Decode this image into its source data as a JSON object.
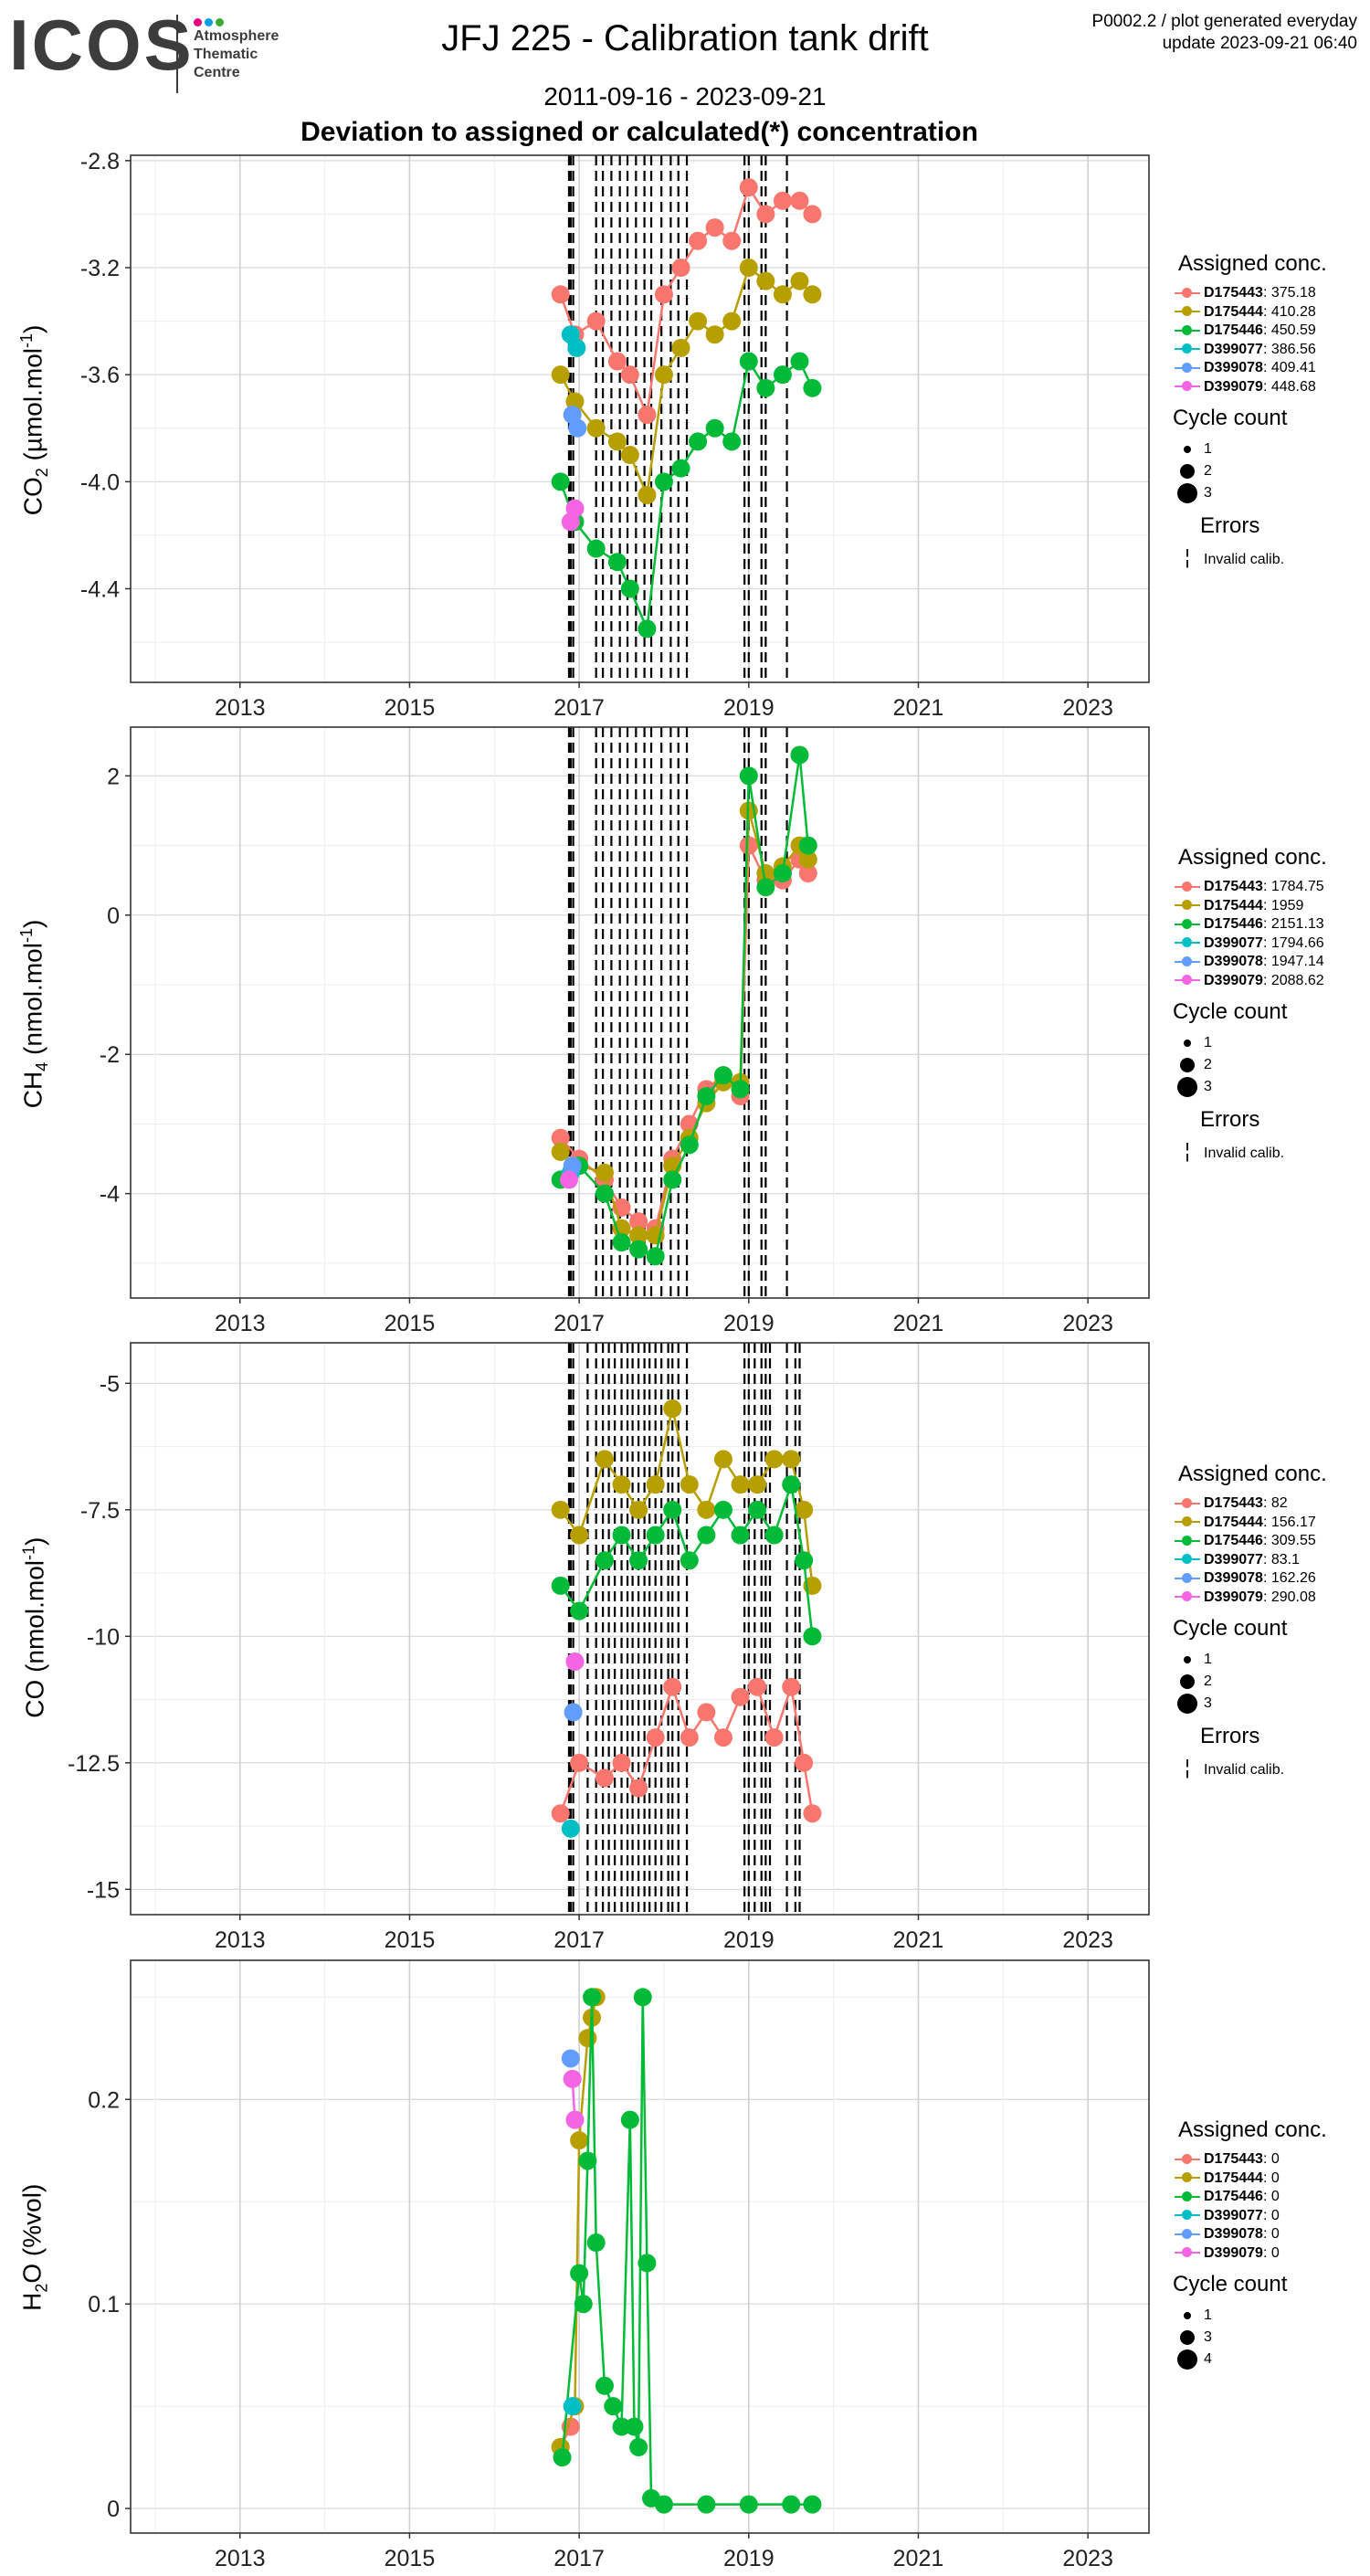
{
  "header": {
    "logo": "ICOS",
    "logo_subtitle": "Atmosphere\nThematic\nCentre",
    "title": "JFJ 225 - Calibration tank drift",
    "date_range": "2011-09-16 - 2023-09-21",
    "subtitle": "Deviation to assigned or calculated(*) concentration",
    "meta_line1": "P0002.2 / plot generated everyday",
    "meta_line2": "update  2023-09-21 06:40"
  },
  "colors": {
    "D175443": "#F8766D",
    "D175444": "#B79F00",
    "D175446": "#00BA38",
    "D399077": "#00BFC4",
    "D399078": "#619CFF",
    "D399079": "#F564E3",
    "logo_dots": [
      "#E6007E",
      "#00A0E3",
      "#3AAA35"
    ]
  },
  "x_ticks": [
    "2013",
    "2015",
    "2017",
    "2019",
    "2021",
    "2023"
  ],
  "chart_data": [
    {
      "type": "scatter",
      "ylabel": "CO2 (µmol.mol-1)",
      "ylim": [
        -4.75,
        -2.78
      ],
      "y_ticks": [
        -2.8,
        -3.2,
        -3.6,
        -4.0,
        -4.4
      ],
      "xlim": [
        2011.71,
        2023.72
      ],
      "invalid_calibration_lines": [
        2016.88,
        2016.9,
        2016.93,
        2017.2,
        2017.28,
        2017.38,
        2017.48,
        2017.57,
        2017.67,
        2017.77,
        2017.85,
        2017.97,
        2018.08,
        2018.17,
        2018.27,
        2018.95,
        2019.0,
        2019.15,
        2019.2,
        2019.45
      ],
      "series": [
        {
          "name": "D175443",
          "x": [
            2016.78,
            2016.95,
            2017.2,
            2017.45,
            2017.6,
            2017.8,
            2018.0,
            2018.2,
            2018.4,
            2018.6,
            2018.8,
            2019.0,
            2019.2,
            2019.4,
            2019.6,
            2019.75
          ],
          "y": [
            -3.3,
            -3.45,
            -3.4,
            -3.55,
            -3.6,
            -3.75,
            -3.3,
            -3.2,
            -3.1,
            -3.05,
            -3.1,
            -2.9,
            -3.0,
            -2.95,
            -2.95,
            -3.0
          ]
        },
        {
          "name": "D175444",
          "x": [
            2016.78,
            2016.95,
            2017.2,
            2017.45,
            2017.6,
            2017.8,
            2018.0,
            2018.2,
            2018.4,
            2018.6,
            2018.8,
            2019.0,
            2019.2,
            2019.4,
            2019.6,
            2019.75
          ],
          "y": [
            -3.6,
            -3.7,
            -3.8,
            -3.85,
            -3.9,
            -4.05,
            -3.6,
            -3.5,
            -3.4,
            -3.45,
            -3.4,
            -3.2,
            -3.25,
            -3.3,
            -3.25,
            -3.3
          ]
        },
        {
          "name": "D175446",
          "x": [
            2016.78,
            2016.95,
            2017.2,
            2017.45,
            2017.6,
            2017.8,
            2018.0,
            2018.2,
            2018.4,
            2018.6,
            2018.8,
            2019.0,
            2019.2,
            2019.4,
            2019.6,
            2019.75
          ],
          "y": [
            -4.0,
            -4.15,
            -4.25,
            -4.3,
            -4.4,
            -4.55,
            -4.0,
            -3.95,
            -3.85,
            -3.8,
            -3.85,
            -3.55,
            -3.65,
            -3.6,
            -3.55,
            -3.65
          ]
        },
        {
          "name": "D399077",
          "x": [
            2016.9,
            2016.97
          ],
          "y": [
            -3.45,
            -3.5
          ]
        },
        {
          "name": "D399078",
          "x": [
            2016.92,
            2016.98
          ],
          "y": [
            -3.75,
            -3.8
          ]
        },
        {
          "name": "D399079",
          "x": [
            2016.9,
            2016.95
          ],
          "y": [
            -4.15,
            -4.1
          ]
        }
      ],
      "legend": {
        "title": "Assigned conc.",
        "entries": [
          {
            "name": "D175443",
            "value": ": 375.18"
          },
          {
            "name": "D175444",
            "value": ": 410.28"
          },
          {
            "name": "D175446",
            "value": ": 450.59"
          },
          {
            "name": "D399077",
            "value": ": 386.56"
          },
          {
            "name": "D399078",
            "value": ": 409.41"
          },
          {
            "name": "D399079",
            "value": ": 448.68"
          }
        ],
        "cycle_title": "Cycle count",
        "cycle_values": [
          "1",
          "2",
          "3"
        ],
        "errors_title": "Errors",
        "errors_label": "Invalid calib.",
        "errors_glyph": "¦"
      }
    },
    {
      "type": "scatter",
      "ylabel": "CH4 (nmol.mol-1)",
      "ylim": [
        -5.5,
        2.7
      ],
      "y_ticks": [
        2,
        0,
        -2,
        -4
      ],
      "xlim": [
        2011.71,
        2023.72
      ],
      "invalid_calibration_lines": [
        2016.88,
        2016.9,
        2016.93,
        2017.2,
        2017.28,
        2017.38,
        2017.48,
        2017.57,
        2017.67,
        2017.77,
        2017.85,
        2017.97,
        2018.08,
        2018.17,
        2018.27,
        2018.95,
        2019.0,
        2019.15,
        2019.2,
        2019.45
      ],
      "series": [
        {
          "name": "D175443",
          "x": [
            2016.78,
            2017.0,
            2017.3,
            2017.5,
            2017.7,
            2017.9,
            2018.1,
            2018.3,
            2018.5,
            2018.7,
            2018.9,
            2019.0,
            2019.2,
            2019.4,
            2019.6,
            2019.7
          ],
          "y": [
            -3.2,
            -3.5,
            -3.8,
            -4.2,
            -4.4,
            -4.5,
            -3.5,
            -3.0,
            -2.5,
            -2.3,
            -2.6,
            1.0,
            0.5,
            0.5,
            0.8,
            0.6
          ]
        },
        {
          "name": "D175444",
          "x": [
            2016.78,
            2017.0,
            2017.3,
            2017.5,
            2017.7,
            2017.9,
            2018.1,
            2018.3,
            2018.5,
            2018.7,
            2018.9,
            2019.0,
            2019.2,
            2019.4,
            2019.6,
            2019.7
          ],
          "y": [
            -3.4,
            -3.6,
            -3.7,
            -4.5,
            -4.6,
            -4.6,
            -3.6,
            -3.2,
            -2.7,
            -2.4,
            -2.4,
            1.5,
            0.6,
            0.7,
            1.0,
            0.8
          ]
        },
        {
          "name": "D175446",
          "x": [
            2016.78,
            2017.0,
            2017.3,
            2017.5,
            2017.7,
            2017.9,
            2018.1,
            2018.3,
            2018.5,
            2018.7,
            2018.9,
            2019.0,
            2019.2,
            2019.4,
            2019.6,
            2019.7
          ],
          "y": [
            -3.8,
            -3.6,
            -4.0,
            -4.7,
            -4.8,
            -4.9,
            -3.8,
            -3.3,
            -2.6,
            -2.3,
            -2.5,
            2.0,
            0.4,
            0.6,
            2.3,
            1.0
          ]
        },
        {
          "name": "D399077",
          "x": [
            2016.9
          ],
          "y": [
            -3.7
          ]
        },
        {
          "name": "D399078",
          "x": [
            2016.92
          ],
          "y": [
            -3.6
          ]
        },
        {
          "name": "D399079",
          "x": [
            2016.88
          ],
          "y": [
            -3.8
          ]
        }
      ],
      "legend": {
        "title": "Assigned conc.",
        "entries": [
          {
            "name": "D175443",
            "value": ": 1784.75"
          },
          {
            "name": "D175444",
            "value": ": 1959"
          },
          {
            "name": "D175446",
            "value": ": 2151.13"
          },
          {
            "name": "D399077",
            "value": ": 1794.66"
          },
          {
            "name": "D399078",
            "value": ": 1947.14"
          },
          {
            "name": "D399079",
            "value": ": 2088.62"
          }
        ],
        "cycle_title": "Cycle count",
        "cycle_values": [
          "1",
          "2",
          "3"
        ],
        "errors_title": "Errors",
        "errors_label": "Invalid calib.",
        "errors_glyph": "¦"
      }
    },
    {
      "type": "scatter",
      "ylabel": "CO (nmol.mol-1)",
      "ylim": [
        -15.5,
        -4.2
      ],
      "y_ticks": [
        -5.0,
        -7.5,
        -10.0,
        -12.5,
        -15.0
      ],
      "xlim": [
        2011.71,
        2023.72
      ],
      "invalid_calibration_lines": [
        2016.88,
        2016.9,
        2016.93,
        2017.1,
        2017.2,
        2017.28,
        2017.35,
        2017.42,
        2017.5,
        2017.57,
        2017.63,
        2017.7,
        2017.77,
        2017.83,
        2017.9,
        2017.97,
        2018.05,
        2018.1,
        2018.17,
        2018.27,
        2018.95,
        2019.0,
        2019.07,
        2019.15,
        2019.2,
        2019.25,
        2019.45,
        2019.55,
        2019.6
      ],
      "series": [
        {
          "name": "D175443",
          "x": [
            2016.78,
            2017.0,
            2017.3,
            2017.5,
            2017.7,
            2017.9,
            2018.1,
            2018.3,
            2018.5,
            2018.7,
            2018.9,
            2019.1,
            2019.3,
            2019.5,
            2019.65,
            2019.75
          ],
          "y": [
            -13.5,
            -12.5,
            -12.8,
            -12.5,
            -13.0,
            -12.0,
            -11.0,
            -12.0,
            -11.5,
            -12.0,
            -11.2,
            -11.0,
            -12.0,
            -11.0,
            -12.5,
            -13.5
          ]
        },
        {
          "name": "D175444",
          "x": [
            2016.78,
            2017.0,
            2017.3,
            2017.5,
            2017.7,
            2017.9,
            2018.1,
            2018.3,
            2018.5,
            2018.7,
            2018.9,
            2019.1,
            2019.3,
            2019.5,
            2019.65,
            2019.75
          ],
          "y": [
            -7.5,
            -8.0,
            -6.5,
            -7.0,
            -7.5,
            -7.0,
            -5.5,
            -7.0,
            -7.5,
            -6.5,
            -7.0,
            -7.0,
            -6.5,
            -6.5,
            -7.5,
            -9.0
          ]
        },
        {
          "name": "D175446",
          "x": [
            2016.78,
            2017.0,
            2017.3,
            2017.5,
            2017.7,
            2017.9,
            2018.1,
            2018.3,
            2018.5,
            2018.7,
            2018.9,
            2019.1,
            2019.3,
            2019.5,
            2019.65,
            2019.75
          ],
          "y": [
            -9.0,
            -9.5,
            -8.5,
            -8.0,
            -8.5,
            -8.0,
            -7.5,
            -8.5,
            -8.0,
            -7.5,
            -8.0,
            -7.5,
            -8.0,
            -7.0,
            -8.5,
            -10.0
          ]
        },
        {
          "name": "D399077",
          "x": [
            2016.9
          ],
          "y": [
            -13.8
          ]
        },
        {
          "name": "D399078",
          "x": [
            2016.93
          ],
          "y": [
            -11.5
          ]
        },
        {
          "name": "D399079",
          "x": [
            2016.95
          ],
          "y": [
            -10.5
          ]
        }
      ],
      "legend": {
        "title": "Assigned conc.",
        "entries": [
          {
            "name": "D175443",
            "value": ": 82"
          },
          {
            "name": "D175444",
            "value": ": 156.17"
          },
          {
            "name": "D175446",
            "value": ": 309.55"
          },
          {
            "name": "D399077",
            "value": ": 83.1"
          },
          {
            "name": "D399078",
            "value": ": 162.26"
          },
          {
            "name": "D399079",
            "value": ": 290.08"
          }
        ],
        "cycle_title": "Cycle count",
        "cycle_values": [
          "1",
          "2",
          "3"
        ],
        "errors_title": "Errors",
        "errors_label": "Invalid calib.",
        "errors_glyph": "¦"
      }
    },
    {
      "type": "line",
      "ylabel": "H2O (%vol)",
      "ylim": [
        -0.012,
        0.268
      ],
      "y_ticks": [
        0.2,
        0.1,
        0.0
      ],
      "xlim": [
        2011.71,
        2023.72
      ],
      "invalid_calibration_lines": [],
      "series": [
        {
          "name": "D175443",
          "x": [
            2016.78,
            2016.9
          ],
          "y": [
            0.03,
            0.04
          ]
        },
        {
          "name": "D175444",
          "x": [
            2016.78,
            2016.95,
            2017.0,
            2017.1,
            2017.15,
            2017.2
          ],
          "y": [
            0.03,
            0.05,
            0.18,
            0.23,
            0.24,
            0.25
          ]
        },
        {
          "name": "D175446",
          "x": [
            2016.8,
            2017.0,
            2017.05,
            2017.1,
            2017.15,
            2017.2,
            2017.3,
            2017.4,
            2017.5,
            2017.6,
            2017.65,
            2017.7,
            2017.75,
            2017.8,
            2017.85,
            2018.0,
            2018.5,
            2019.0,
            2019.5,
            2019.75
          ],
          "y": [
            0.025,
            0.115,
            0.1,
            0.17,
            0.25,
            0.13,
            0.06,
            0.05,
            0.04,
            0.19,
            0.04,
            0.03,
            0.25,
            0.12,
            0.005,
            0.002,
            0.002,
            0.002,
            0.002,
            0.002
          ]
        },
        {
          "name": "D399077",
          "x": [
            2016.92
          ],
          "y": [
            0.05
          ]
        },
        {
          "name": "D399078",
          "x": [
            2016.9
          ],
          "y": [
            0.22
          ]
        },
        {
          "name": "D399079",
          "x": [
            2016.92,
            2016.95
          ],
          "y": [
            0.21,
            0.19
          ]
        }
      ],
      "legend": {
        "title": "Assigned conc.",
        "entries": [
          {
            "name": "D175443",
            "value": ": 0"
          },
          {
            "name": "D175444",
            "value": ": 0"
          },
          {
            "name": "D175446",
            "value": ": 0"
          },
          {
            "name": "D399077",
            "value": ": 0"
          },
          {
            "name": "D399078",
            "value": ": 0"
          },
          {
            "name": "D399079",
            "value": ": 0"
          }
        ],
        "cycle_title": "Cycle count",
        "cycle_values": [
          "1",
          "3",
          "4"
        ],
        "errors_title": "",
        "errors_label": "",
        "errors_glyph": ""
      }
    }
  ]
}
